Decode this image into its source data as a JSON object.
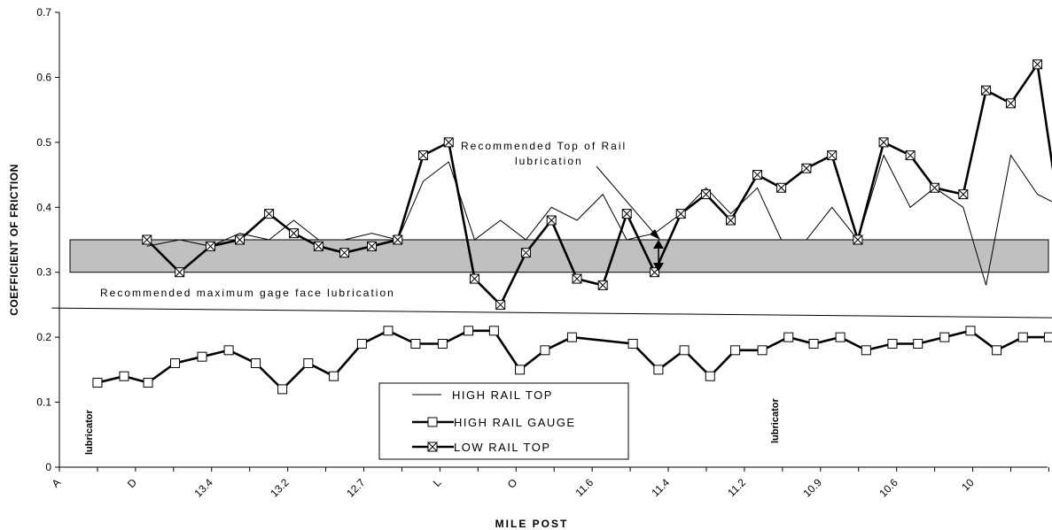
{
  "chart_data": {
    "type": "line",
    "xlabel": "MILE POST",
    "ylabel": "COEFFICIENT OF FRICTION",
    "ylim": [
      0,
      0.7
    ],
    "yticks": [
      "0",
      "0.1",
      "0.2",
      "0.3",
      "0.4",
      "0.5",
      "0.6",
      "0.7"
    ],
    "xtick_labels": [
      "A",
      "D",
      "13.4",
      "13.2",
      "12.7",
      "L",
      "O",
      "11.6",
      "11.4",
      "11.2",
      "10.9",
      "10.6",
      "10"
    ],
    "grid": false,
    "legend_position": "bottom-center",
    "series": [
      {
        "name": "HIGH RAIL TOP",
        "style": "thin-line",
        "color": "#000000",
        "points": [
          [
            2.3,
            0.34
          ],
          [
            3.16,
            0.35
          ],
          [
            3.97,
            0.34
          ],
          [
            4.74,
            0.36
          ],
          [
            5.51,
            0.35
          ],
          [
            6.16,
            0.38
          ],
          [
            6.81,
            0.35
          ],
          [
            7.49,
            0.35
          ],
          [
            8.21,
            0.36
          ],
          [
            8.89,
            0.35
          ],
          [
            9.56,
            0.44
          ],
          [
            10.23,
            0.47
          ],
          [
            10.91,
            0.35
          ],
          [
            11.59,
            0.38
          ],
          [
            12.26,
            0.35
          ],
          [
            12.93,
            0.4
          ],
          [
            13.6,
            0.38
          ],
          [
            14.28,
            0.42
          ],
          [
            14.91,
            0.35
          ],
          [
            15.64,
            0.36
          ],
          [
            16.33,
            0.39
          ],
          [
            16.99,
            0.43
          ],
          [
            17.64,
            0.39
          ],
          [
            18.34,
            0.43
          ],
          [
            18.97,
            0.35
          ],
          [
            19.63,
            0.35
          ],
          [
            20.3,
            0.4
          ],
          [
            20.98,
            0.35
          ],
          [
            21.66,
            0.48
          ],
          [
            22.36,
            0.4
          ],
          [
            23.0,
            0.43
          ],
          [
            23.75,
            0.4
          ],
          [
            24.35,
            0.28
          ],
          [
            25.0,
            0.48
          ],
          [
            25.7,
            0.42
          ],
          [
            26.38,
            0.4
          ]
        ]
      },
      {
        "name": "HIGH RAIL GAUGE",
        "style": "thick-line-square",
        "color": "#000000",
        "points": [
          [
            1.0,
            0.13
          ],
          [
            1.7,
            0.14
          ],
          [
            2.33,
            0.13
          ],
          [
            3.04,
            0.16
          ],
          [
            3.75,
            0.17
          ],
          [
            4.45,
            0.18
          ],
          [
            5.16,
            0.16
          ],
          [
            5.86,
            0.12
          ],
          [
            6.54,
            0.16
          ],
          [
            7.21,
            0.14
          ],
          [
            7.95,
            0.19
          ],
          [
            8.64,
            0.21
          ],
          [
            9.36,
            0.19
          ],
          [
            10.07,
            0.19
          ],
          [
            10.75,
            0.21
          ],
          [
            11.42,
            0.21
          ],
          [
            12.1,
            0.15
          ],
          [
            12.76,
            0.18
          ],
          [
            13.47,
            0.2
          ],
          [
            15.07,
            0.19
          ],
          [
            15.74,
            0.15
          ],
          [
            16.42,
            0.18
          ],
          [
            17.1,
            0.14
          ],
          [
            17.76,
            0.18
          ],
          [
            18.47,
            0.18
          ],
          [
            19.16,
            0.2
          ],
          [
            19.82,
            0.19
          ],
          [
            20.52,
            0.2
          ],
          [
            21.2,
            0.18
          ],
          [
            21.89,
            0.19
          ],
          [
            22.56,
            0.19
          ],
          [
            23.26,
            0.2
          ],
          [
            23.94,
            0.21
          ],
          [
            24.63,
            0.18
          ],
          [
            25.32,
            0.2
          ],
          [
            26.0,
            0.2
          ]
        ]
      },
      {
        "name": "LOW RAIL TOP",
        "style": "thick-line-xbox",
        "color": "#000000",
        "points": [
          [
            2.3,
            0.35
          ],
          [
            3.16,
            0.3
          ],
          [
            3.97,
            0.34
          ],
          [
            4.74,
            0.35
          ],
          [
            5.51,
            0.39
          ],
          [
            6.16,
            0.36
          ],
          [
            6.81,
            0.34
          ],
          [
            7.49,
            0.33
          ],
          [
            8.21,
            0.34
          ],
          [
            8.89,
            0.35
          ],
          [
            9.56,
            0.48
          ],
          [
            10.23,
            0.5
          ],
          [
            10.91,
            0.29
          ],
          [
            11.59,
            0.25
          ],
          [
            12.26,
            0.33
          ],
          [
            12.93,
            0.38
          ],
          [
            13.6,
            0.29
          ],
          [
            14.28,
            0.28
          ],
          [
            14.91,
            0.39
          ],
          [
            15.64,
            0.3
          ],
          [
            16.33,
            0.39
          ],
          [
            16.99,
            0.42
          ],
          [
            17.64,
            0.38
          ],
          [
            18.34,
            0.45
          ],
          [
            18.97,
            0.43
          ],
          [
            19.63,
            0.46
          ],
          [
            20.3,
            0.48
          ],
          [
            20.98,
            0.35
          ],
          [
            21.66,
            0.5
          ],
          [
            22.36,
            0.48
          ],
          [
            23.0,
            0.43
          ],
          [
            23.75,
            0.42
          ],
          [
            24.35,
            0.58
          ],
          [
            25.0,
            0.56
          ],
          [
            25.7,
            0.62
          ],
          [
            26.38,
            0.35
          ]
        ]
      }
    ],
    "band": {
      "from": 0.3,
      "to": 0.35,
      "color": "#c0c0c0"
    },
    "guide_line": {
      "from": [
        -0.2,
        0.245
      ],
      "to": [
        26.2,
        0.23
      ]
    },
    "annotations": {
      "top_of_rail_line1": "Recommended Top of Rail",
      "top_of_rail_line2": "lubrication",
      "gage_face": "Recommended maximum gage face lubrication",
      "lubricator_1": "lubricator",
      "lubricator_2": "lubricator"
    }
  }
}
